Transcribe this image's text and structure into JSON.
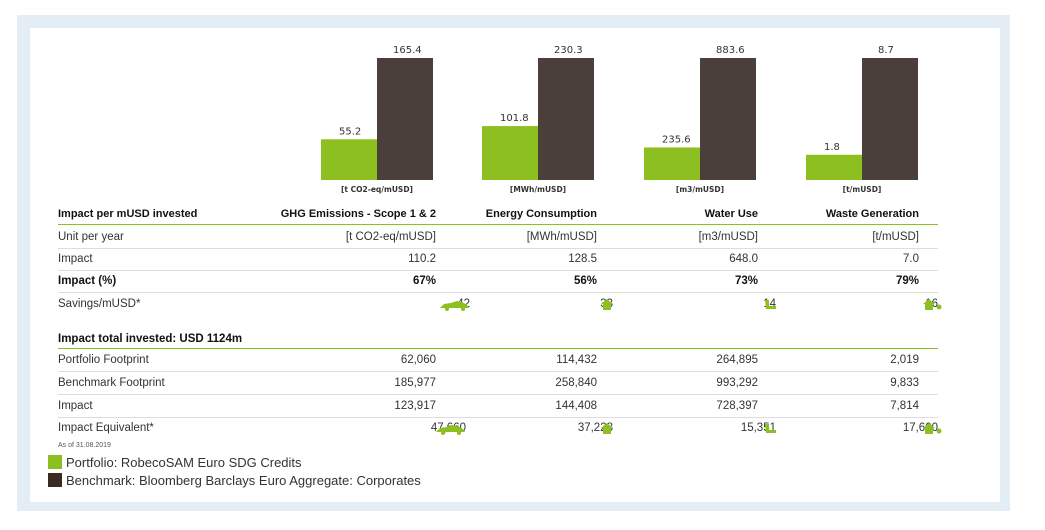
{
  "colors": {
    "portfolio": "#8cbf1f",
    "benchmark": "#4a3f3b",
    "accent": "#8cbf1f"
  },
  "chart_data": {
    "type": "bar",
    "series": [
      {
        "name": "Portfolio: RobecoSAM Euro SDG Credits",
        "values": [
          55.2,
          101.8,
          235.6,
          1.8
        ]
      },
      {
        "name": "Benchmark: Bloomberg Barclays Euro Aggregate: Corporates",
        "values": [
          165.4,
          230.3,
          883.6,
          8.7
        ]
      }
    ],
    "value_labels": [
      {
        "portfolio": "55.2",
        "benchmark": "165.4"
      },
      {
        "portfolio": "101.8",
        "benchmark": "230.3"
      },
      {
        "portfolio": "235.6",
        "benchmark": "883.6"
      },
      {
        "portfolio": "1.8",
        "benchmark": "8.7"
      }
    ],
    "panels": [
      {
        "category": "GHG Emissions - Scope 1 & 2",
        "unit": "[t CO2-eq/mUSD]",
        "ylim": [
          0,
          165.4
        ]
      },
      {
        "category": "Energy Consumption",
        "unit": "[MWh/mUSD]",
        "ylim": [
          0,
          230.3
        ]
      },
      {
        "category": "Water Use",
        "unit": "[m3/mUSD]",
        "ylim": [
          0,
          883.6
        ]
      },
      {
        "category": "Waste Generation",
        "unit": "[t/mUSD]",
        "ylim": [
          0,
          8.7
        ]
      }
    ]
  },
  "table": {
    "header": [
      "Impact per mUSD invested",
      "GHG Emissions - Scope 1 & 2",
      "Energy Consumption",
      "Water Use",
      "Waste Generation"
    ],
    "unit_row": {
      "label": "Unit per year",
      "values": [
        "[t CO2-eq/mUSD]",
        "[MWh/mUSD]",
        "[m3/mUSD]",
        "[t/mUSD]"
      ]
    },
    "impact_row": {
      "label": "Impact",
      "values": [
        "110.2",
        "128.5",
        "648.0",
        "7.0"
      ]
    },
    "impact_pct_row": {
      "label": "Impact (%)",
      "values": [
        "67%",
        "56%",
        "73%",
        "79%"
      ]
    },
    "savings_row": {
      "label": "Savings/mUSD*",
      "values": [
        "42",
        "33",
        "14",
        "16"
      ]
    },
    "total_header": "Impact total invested: USD 1124m",
    "portfolio_row": {
      "label": "Portfolio Footprint",
      "values": [
        "62,060",
        "114,432",
        "264,895",
        "2,019"
      ]
    },
    "benchmark_row": {
      "label": "Benchmark Footprint",
      "values": [
        "185,977",
        "258,840",
        "993,292",
        "9,833"
      ]
    },
    "impact_total_row": {
      "label": "Impact",
      "values": [
        "123,917",
        "144,408",
        "728,397",
        "7,814"
      ]
    },
    "equivalent_row": {
      "label": "Impact Equivalent*",
      "values": [
        "47,660",
        "37,228",
        "15,351",
        "17,600"
      ]
    }
  },
  "icons": [
    "car-icon",
    "house-icon",
    "tap-icon",
    "house-tree-icon"
  ],
  "footnote": "As of 31.08.2019",
  "legend": {
    "portfolio": "Portfolio: RobecoSAM Euro SDG Credits",
    "benchmark": "Benchmark: Bloomberg Barclays Euro Aggregate: Corporates"
  }
}
